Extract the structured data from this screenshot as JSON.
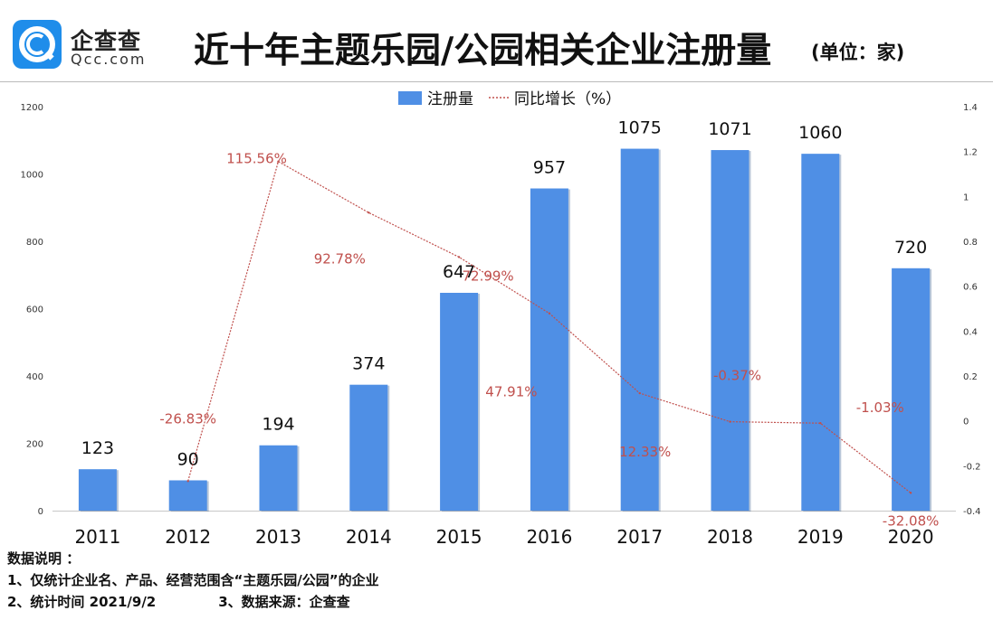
{
  "header": {
    "logo_name": "企查查",
    "logo_sub": "Qcc.com",
    "title": "近十年主题乐园/公园相关企业注册量",
    "unit": "(单位：家)"
  },
  "chart_data": {
    "type": "bar",
    "categories": [
      "2011",
      "2012",
      "2013",
      "2014",
      "2015",
      "2016",
      "2017",
      "2018",
      "2019",
      "2020"
    ],
    "series": [
      {
        "name": "注册量",
        "type": "bar",
        "axis": "left",
        "color": "#4f8fe5",
        "values": [
          123,
          90,
          194,
          374,
          647,
          957,
          1075,
          1071,
          1060,
          720
        ],
        "labels": [
          "123",
          "90",
          "194",
          "374",
          "647",
          "957",
          "1075",
          "1071",
          "1060",
          "720"
        ]
      },
      {
        "name": "同比增长（%）",
        "type": "line",
        "axis": "right",
        "color": "#c0504d",
        "values": [
          null,
          -0.2683,
          1.1556,
          0.9278,
          0.7299,
          0.4791,
          0.1233,
          -0.0037,
          -0.0103,
          -0.3208
        ],
        "labels": [
          "",
          "-26.83%",
          "115.56%",
          "92.78%",
          "72.99%",
          "47.91%",
          "12.33%",
          "-0.37%",
          "-1.03%",
          "-32.08%"
        ]
      }
    ],
    "y_left": {
      "min": 0,
      "max": 1200,
      "ticks": [
        "0",
        "200",
        "400",
        "600",
        "800",
        "1000",
        "1200"
      ]
    },
    "y_right": {
      "min": -0.4,
      "max": 1.4,
      "ticks": [
        "-0.4",
        "-0.2",
        "0",
        "0.2",
        "0.4",
        "0.6",
        "0.8",
        "1",
        "1.2",
        "1.4"
      ]
    },
    "legend": {
      "position": "top",
      "items": [
        "注册量",
        "同比增长（%）"
      ]
    },
    "grid": false
  },
  "notes": {
    "heading": "数据说明 ：",
    "item1": "1、仅统计企业名、产品、经营范围含“主题乐园/公园”的企业",
    "item2": "2、统计时间 2021/9/2",
    "item3": "3、数据来源：企查查"
  }
}
